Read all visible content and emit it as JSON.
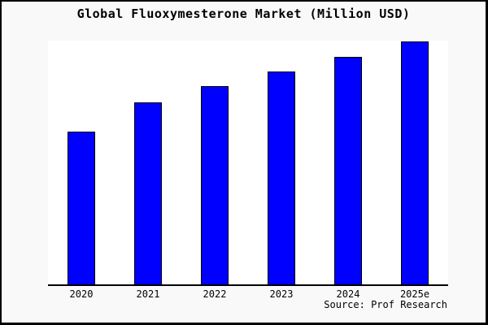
{
  "title": "Global Fluoxymesterone Market (Million USD)",
  "source_label": "Source: Prof Research",
  "colors": {
    "bar": "#0000ff",
    "bar_border": "#000000",
    "background": "#f9f9f9",
    "plot_background": "#ffffff",
    "axis": "#000000",
    "frame_border": "#000000"
  },
  "chart_data": {
    "type": "bar",
    "title": "Global Fluoxymesterone Market (Million USD)",
    "categories": [
      "2020",
      "2021",
      "2022",
      "2023",
      "2024",
      "2025e"
    ],
    "values": [
      63,
      75,
      81.5,
      87.5,
      93.5,
      100
    ],
    "xlabel": "",
    "ylabel": "",
    "ylim": [
      0,
      100.3
    ],
    "grid": false,
    "legend_position": "none",
    "annotations": [
      "Source: Prof Research"
    ]
  }
}
